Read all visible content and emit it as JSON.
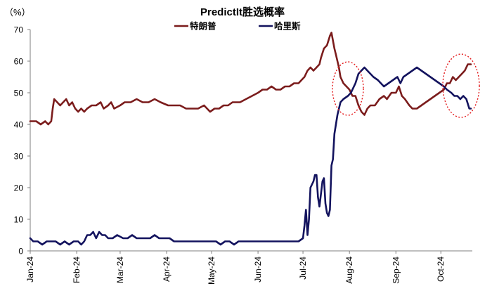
{
  "chart_data": {
    "type": "line",
    "title": "PredictIt胜选概率",
    "unit_label": "（%）",
    "ylim": [
      0,
      70
    ],
    "yticks": [
      0,
      10,
      20,
      30,
      40,
      50,
      60,
      70
    ],
    "x_tick_labels": [
      "Jan-24",
      "Feb-24",
      "Mar-24",
      "Apr-24",
      "May-24",
      "Jun-24",
      "Jul-24",
      "Aug-24",
      "Sep-24",
      "Oct-24"
    ],
    "x_month_starts": [
      "2024-01-01",
      "2024-02-01",
      "2024-03-01",
      "2024-04-01",
      "2024-05-01",
      "2024-06-01",
      "2024-07-01",
      "2024-08-01",
      "2024-09-01",
      "2024-10-01"
    ],
    "xlim": [
      "2024-01-01",
      "2024-10-22"
    ],
    "legend_position": "top-center",
    "grid": false,
    "series": [
      {
        "name": "特朗普",
        "color": "#7b1c1c",
        "points": [
          [
            "2024-01-01",
            41
          ],
          [
            "2024-01-05",
            41
          ],
          [
            "2024-01-08",
            40
          ],
          [
            "2024-01-11",
            41
          ],
          [
            "2024-01-13",
            40
          ],
          [
            "2024-01-15",
            41
          ],
          [
            "2024-01-16",
            45
          ],
          [
            "2024-01-17",
            48
          ],
          [
            "2024-01-19",
            47
          ],
          [
            "2024-01-21",
            46
          ],
          [
            "2024-01-23",
            47
          ],
          [
            "2024-01-25",
            48
          ],
          [
            "2024-01-27",
            46
          ],
          [
            "2024-01-29",
            47
          ],
          [
            "2024-01-31",
            45
          ],
          [
            "2024-02-02",
            44
          ],
          [
            "2024-02-04",
            45
          ],
          [
            "2024-02-06",
            44
          ],
          [
            "2024-02-08",
            45
          ],
          [
            "2024-02-11",
            46
          ],
          [
            "2024-02-14",
            46
          ],
          [
            "2024-02-17",
            47
          ],
          [
            "2024-02-19",
            45
          ],
          [
            "2024-02-22",
            46
          ],
          [
            "2024-02-24",
            47
          ],
          [
            "2024-02-26",
            45
          ],
          [
            "2024-03-01",
            46
          ],
          [
            "2024-03-04",
            47
          ],
          [
            "2024-03-08",
            47
          ],
          [
            "2024-03-12",
            48
          ],
          [
            "2024-03-16",
            47
          ],
          [
            "2024-03-20",
            47
          ],
          [
            "2024-03-24",
            48
          ],
          [
            "2024-03-28",
            47
          ],
          [
            "2024-04-02",
            46
          ],
          [
            "2024-04-06",
            46
          ],
          [
            "2024-04-10",
            46
          ],
          [
            "2024-04-14",
            45
          ],
          [
            "2024-04-18",
            45
          ],
          [
            "2024-04-22",
            45
          ],
          [
            "2024-04-26",
            46
          ],
          [
            "2024-04-30",
            44
          ],
          [
            "2024-05-03",
            45
          ],
          [
            "2024-05-06",
            45
          ],
          [
            "2024-05-09",
            46
          ],
          [
            "2024-05-12",
            46
          ],
          [
            "2024-05-15",
            47
          ],
          [
            "2024-05-20",
            47
          ],
          [
            "2024-05-24",
            48
          ],
          [
            "2024-05-28",
            49
          ],
          [
            "2024-06-01",
            50
          ],
          [
            "2024-06-04",
            51
          ],
          [
            "2024-06-07",
            51
          ],
          [
            "2024-06-10",
            52
          ],
          [
            "2024-06-13",
            51
          ],
          [
            "2024-06-16",
            51
          ],
          [
            "2024-06-19",
            52
          ],
          [
            "2024-06-22",
            52
          ],
          [
            "2024-06-25",
            53
          ],
          [
            "2024-06-28",
            53
          ],
          [
            "2024-06-30",
            54
          ],
          [
            "2024-07-02",
            55
          ],
          [
            "2024-07-04",
            57
          ],
          [
            "2024-07-06",
            58
          ],
          [
            "2024-07-08",
            57
          ],
          [
            "2024-07-10",
            58
          ],
          [
            "2024-07-12",
            59
          ],
          [
            "2024-07-13",
            61
          ],
          [
            "2024-07-15",
            64
          ],
          [
            "2024-07-17",
            65
          ],
          [
            "2024-07-19",
            68
          ],
          [
            "2024-07-20",
            69
          ],
          [
            "2024-07-22",
            64
          ],
          [
            "2024-07-23",
            62
          ],
          [
            "2024-07-25",
            58
          ],
          [
            "2024-07-26",
            55
          ],
          [
            "2024-07-28",
            53
          ],
          [
            "2024-07-30",
            52
          ],
          [
            "2024-08-01",
            51
          ],
          [
            "2024-08-03",
            49
          ],
          [
            "2024-08-05",
            49
          ],
          [
            "2024-08-07",
            46
          ],
          [
            "2024-08-09",
            44
          ],
          [
            "2024-08-11",
            43
          ],
          [
            "2024-08-13",
            45
          ],
          [
            "2024-08-15",
            46
          ],
          [
            "2024-08-18",
            46
          ],
          [
            "2024-08-21",
            48
          ],
          [
            "2024-08-24",
            49
          ],
          [
            "2024-08-26",
            48
          ],
          [
            "2024-08-29",
            50
          ],
          [
            "2024-09-01",
            50
          ],
          [
            "2024-09-03",
            52
          ],
          [
            "2024-09-05",
            49
          ],
          [
            "2024-09-07",
            48
          ],
          [
            "2024-09-10",
            46
          ],
          [
            "2024-09-12",
            45
          ],
          [
            "2024-09-15",
            45
          ],
          [
            "2024-09-18",
            46
          ],
          [
            "2024-09-21",
            47
          ],
          [
            "2024-09-24",
            48
          ],
          [
            "2024-09-27",
            49
          ],
          [
            "2024-09-30",
            50
          ],
          [
            "2024-10-03",
            51
          ],
          [
            "2024-10-05",
            53
          ],
          [
            "2024-10-07",
            53
          ],
          [
            "2024-10-09",
            55
          ],
          [
            "2024-10-11",
            54
          ],
          [
            "2024-10-13",
            55
          ],
          [
            "2024-10-15",
            56
          ],
          [
            "2024-10-17",
            57
          ],
          [
            "2024-10-19",
            59
          ],
          [
            "2024-10-21",
            59
          ]
        ]
      },
      {
        "name": "哈里斯",
        "color": "#13135e",
        "points": [
          [
            "2024-01-01",
            4
          ],
          [
            "2024-01-03",
            3
          ],
          [
            "2024-01-06",
            3
          ],
          [
            "2024-01-09",
            2
          ],
          [
            "2024-01-12",
            3
          ],
          [
            "2024-01-15",
            3
          ],
          [
            "2024-01-18",
            3
          ],
          [
            "2024-01-21",
            2
          ],
          [
            "2024-01-24",
            3
          ],
          [
            "2024-01-27",
            2
          ],
          [
            "2024-01-30",
            3
          ],
          [
            "2024-02-02",
            3
          ],
          [
            "2024-02-04",
            2
          ],
          [
            "2024-02-06",
            3
          ],
          [
            "2024-02-08",
            5
          ],
          [
            "2024-02-10",
            5
          ],
          [
            "2024-02-12",
            6
          ],
          [
            "2024-02-14",
            4
          ],
          [
            "2024-02-16",
            6
          ],
          [
            "2024-02-18",
            5
          ],
          [
            "2024-02-20",
            5
          ],
          [
            "2024-02-22",
            4
          ],
          [
            "2024-02-25",
            4
          ],
          [
            "2024-02-28",
            5
          ],
          [
            "2024-03-03",
            4
          ],
          [
            "2024-03-06",
            4
          ],
          [
            "2024-03-09",
            5
          ],
          [
            "2024-03-12",
            4
          ],
          [
            "2024-03-15",
            4
          ],
          [
            "2024-03-18",
            4
          ],
          [
            "2024-03-21",
            4
          ],
          [
            "2024-03-24",
            5
          ],
          [
            "2024-03-27",
            4
          ],
          [
            "2024-03-31",
            4
          ],
          [
            "2024-04-03",
            4
          ],
          [
            "2024-04-06",
            3
          ],
          [
            "2024-04-10",
            3
          ],
          [
            "2024-04-14",
            3
          ],
          [
            "2024-04-18",
            3
          ],
          [
            "2024-04-22",
            3
          ],
          [
            "2024-04-26",
            3
          ],
          [
            "2024-04-30",
            3
          ],
          [
            "2024-05-04",
            3
          ],
          [
            "2024-05-07",
            2
          ],
          [
            "2024-05-10",
            3
          ],
          [
            "2024-05-13",
            3
          ],
          [
            "2024-05-16",
            2
          ],
          [
            "2024-05-19",
            3
          ],
          [
            "2024-05-22",
            3
          ],
          [
            "2024-05-25",
            3
          ],
          [
            "2024-05-28",
            3
          ],
          [
            "2024-06-01",
            3
          ],
          [
            "2024-06-05",
            3
          ],
          [
            "2024-06-09",
            3
          ],
          [
            "2024-06-13",
            3
          ],
          [
            "2024-06-17",
            3
          ],
          [
            "2024-06-21",
            3
          ],
          [
            "2024-06-25",
            3
          ],
          [
            "2024-06-28",
            3
          ],
          [
            "2024-07-01",
            4
          ],
          [
            "2024-07-02",
            8
          ],
          [
            "2024-07-03",
            13
          ],
          [
            "2024-07-04",
            5
          ],
          [
            "2024-07-05",
            10
          ],
          [
            "2024-07-06",
            20
          ],
          [
            "2024-07-08",
            22
          ],
          [
            "2024-07-09",
            24
          ],
          [
            "2024-07-10",
            24
          ],
          [
            "2024-07-11",
            17
          ],
          [
            "2024-07-12",
            14
          ],
          [
            "2024-07-14",
            22
          ],
          [
            "2024-07-15",
            23
          ],
          [
            "2024-07-16",
            15
          ],
          [
            "2024-07-17",
            12
          ],
          [
            "2024-07-18",
            11
          ],
          [
            "2024-07-19",
            13
          ],
          [
            "2024-07-20",
            27
          ],
          [
            "2024-07-21",
            29
          ],
          [
            "2024-07-22",
            37
          ],
          [
            "2024-07-24",
            43
          ],
          [
            "2024-07-26",
            47
          ],
          [
            "2024-07-28",
            48
          ],
          [
            "2024-07-31",
            49
          ],
          [
            "2024-08-02",
            50
          ],
          [
            "2024-08-05",
            53
          ],
          [
            "2024-08-07",
            56
          ],
          [
            "2024-08-09",
            57
          ],
          [
            "2024-08-11",
            58
          ],
          [
            "2024-08-13",
            57
          ],
          [
            "2024-08-15",
            56
          ],
          [
            "2024-08-17",
            55
          ],
          [
            "2024-08-20",
            54
          ],
          [
            "2024-08-22",
            53
          ],
          [
            "2024-08-24",
            52
          ],
          [
            "2024-08-27",
            53
          ],
          [
            "2024-08-30",
            54
          ],
          [
            "2024-09-02",
            55
          ],
          [
            "2024-09-04",
            53
          ],
          [
            "2024-09-06",
            55
          ],
          [
            "2024-09-09",
            56
          ],
          [
            "2024-09-12",
            57
          ],
          [
            "2024-09-15",
            58
          ],
          [
            "2024-09-18",
            57
          ],
          [
            "2024-09-21",
            56
          ],
          [
            "2024-09-24",
            55
          ],
          [
            "2024-09-27",
            54
          ],
          [
            "2024-09-30",
            53
          ],
          [
            "2024-10-03",
            52
          ],
          [
            "2024-10-05",
            51
          ],
          [
            "2024-10-08",
            50
          ],
          [
            "2024-10-10",
            49
          ],
          [
            "2024-10-12",
            49
          ],
          [
            "2024-10-14",
            48
          ],
          [
            "2024-10-16",
            49
          ],
          [
            "2024-10-18",
            48
          ],
          [
            "2024-10-20",
            45
          ],
          [
            "2024-10-21",
            45
          ]
        ]
      }
    ]
  }
}
